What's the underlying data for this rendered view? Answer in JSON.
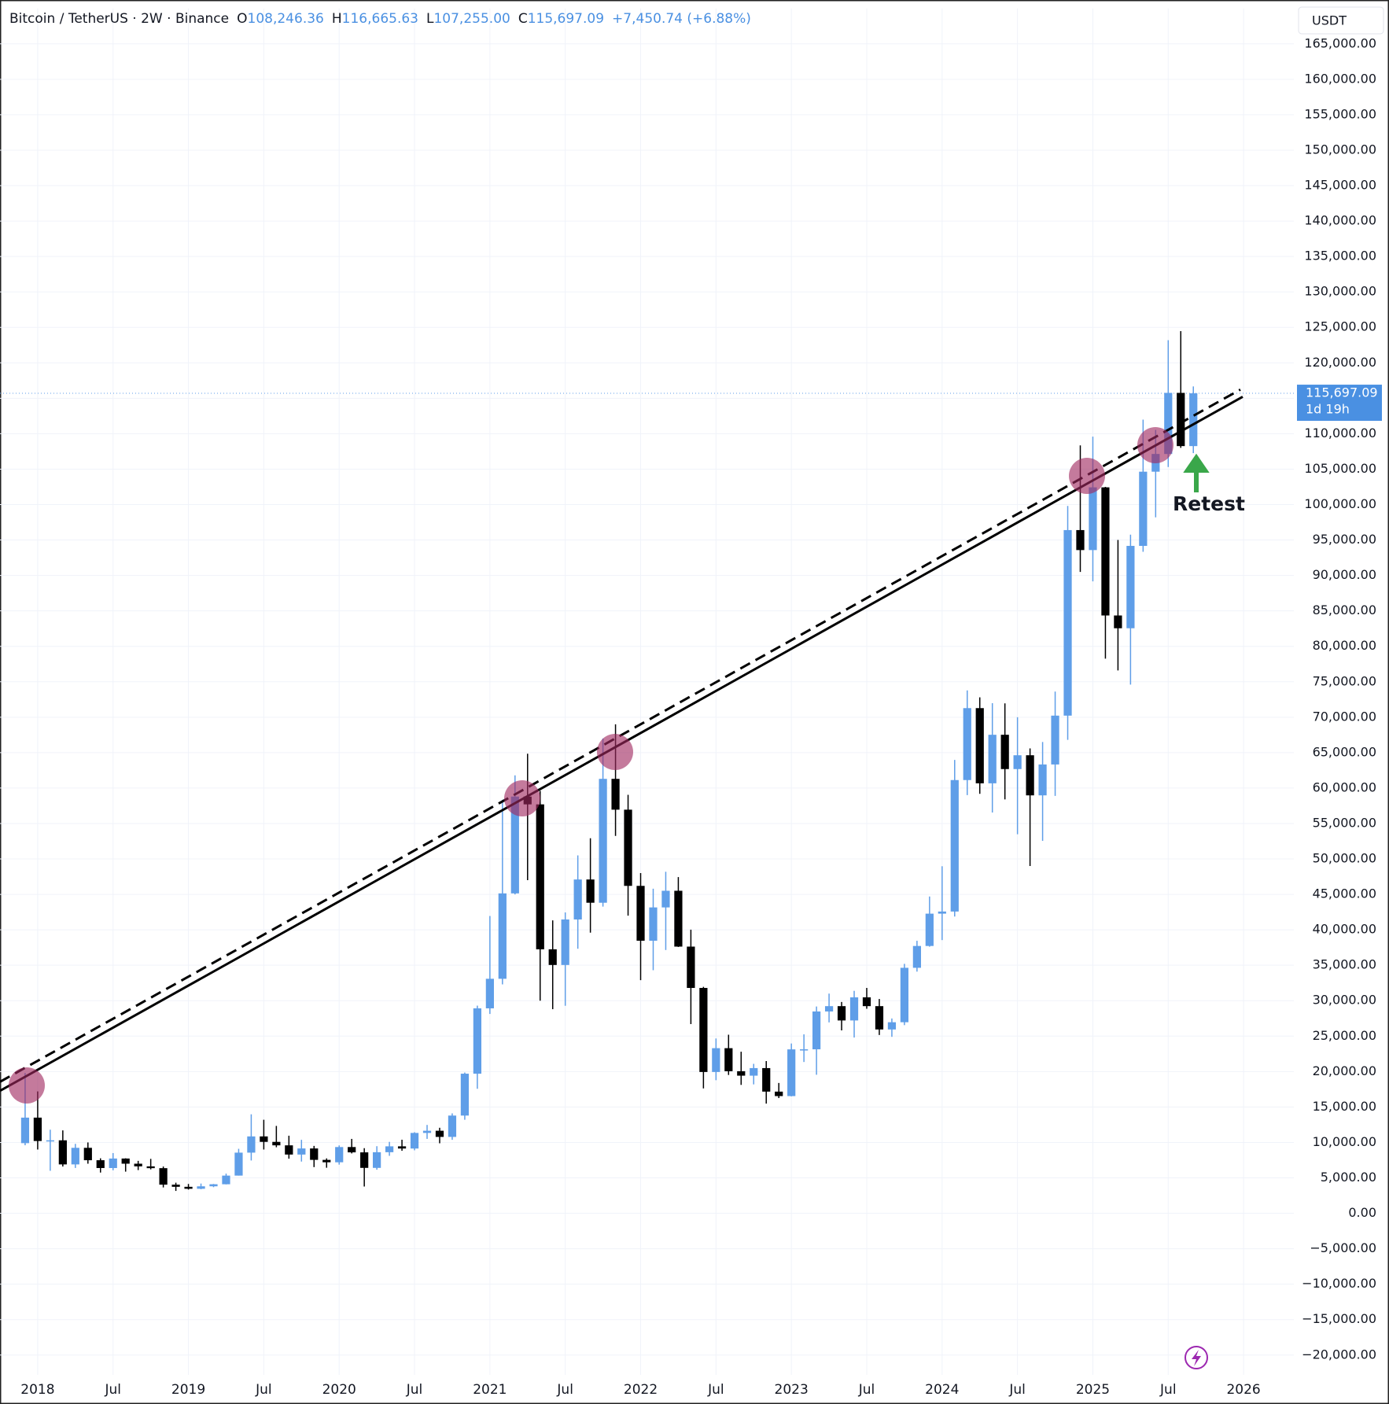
{
  "chart_data": {
    "type": "candlestick",
    "header": {
      "symbol": "Bitcoin / TetherUS · 2W · Binance",
      "fields": [
        {
          "key": "O",
          "text": "108,246.36"
        },
        {
          "key": "H",
          "text": "116,665.63"
        },
        {
          "key": "L",
          "text": "107,255.00"
        },
        {
          "key": "C",
          "text": "115,697.09"
        }
      ],
      "change": "+7,450.74 (+6.88%)"
    },
    "currency": "USDT",
    "up_color": "#5f9ee8",
    "down_color": "#000000",
    "x": [
      "2017-12",
      "2018-01",
      "2018-02",
      "2018-03",
      "2018-04",
      "2018-05",
      "2018-06",
      "2018-07",
      "2018-08",
      "2018-09",
      "2018-10",
      "2018-11",
      "2018-12",
      "2019-01",
      "2019-02",
      "2019-03",
      "2019-04",
      "2019-05",
      "2019-06",
      "2019-07",
      "2019-08",
      "2019-09",
      "2019-10",
      "2019-11",
      "2019-12",
      "2020-01",
      "2020-02",
      "2020-03",
      "2020-04",
      "2020-05",
      "2020-06",
      "2020-07",
      "2020-08",
      "2020-09",
      "2020-10",
      "2020-11",
      "2020-12",
      "2021-01",
      "2021-02",
      "2021-03",
      "2021-04",
      "2021-05",
      "2021-06",
      "2021-07",
      "2021-08",
      "2021-09",
      "2021-10",
      "2021-11",
      "2021-12",
      "2022-01",
      "2022-02",
      "2022-03",
      "2022-04",
      "2022-05",
      "2022-06",
      "2022-07",
      "2022-08",
      "2022-09",
      "2022-10",
      "2022-11",
      "2022-12",
      "2023-01",
      "2023-02",
      "2023-03",
      "2023-04",
      "2023-05",
      "2023-06",
      "2023-07",
      "2023-08",
      "2023-09",
      "2023-10",
      "2023-11",
      "2023-12",
      "2024-01",
      "2024-02",
      "2024-03",
      "2024-04",
      "2024-05",
      "2024-06",
      "2024-07",
      "2024-08",
      "2024-09",
      "2024-10",
      "2024-11",
      "2024-12",
      "2025-01",
      "2025-02",
      "2025-03",
      "2025-04",
      "2025-05",
      "2025-06",
      "2025-07",
      "2025-08",
      "2025-09"
    ],
    "ohlc": [
      [
        9900,
        19800,
        9600,
        13500
      ],
      [
        13500,
        17200,
        9000,
        10200
      ],
      [
        10200,
        11800,
        6000,
        10300
      ],
      [
        10300,
        11700,
        6600,
        6900
      ],
      [
        6900,
        9800,
        6400,
        9240
      ],
      [
        9240,
        10000,
        7000,
        7490
      ],
      [
        7490,
        7760,
        5750,
        6390
      ],
      [
        6390,
        8500,
        6070,
        7730
      ],
      [
        7730,
        7760,
        5880,
        7000
      ],
      [
        7000,
        7400,
        6100,
        6625
      ],
      [
        6625,
        7680,
        6200,
        6370
      ],
      [
        6370,
        6600,
        3650,
        4040
      ],
      [
        4040,
        4320,
        3160,
        3740
      ],
      [
        3740,
        4140,
        3350,
        3460
      ],
      [
        3460,
        4200,
        3400,
        3810
      ],
      [
        3810,
        4140,
        3690,
        4100
      ],
      [
        4100,
        5600,
        4080,
        5320
      ],
      [
        5320,
        9100,
        5320,
        8560
      ],
      [
        8560,
        13970,
        7450,
        10850
      ],
      [
        10850,
        13200,
        9000,
        10080
      ],
      [
        10080,
        12330,
        9320,
        9590
      ],
      [
        9590,
        10950,
        7710,
        8290
      ],
      [
        8290,
        10370,
        7300,
        9150
      ],
      [
        9150,
        9510,
        6520,
        7540
      ],
      [
        7540,
        7750,
        6430,
        7200
      ],
      [
        7200,
        9580,
        6870,
        9350
      ],
      [
        9350,
        10500,
        8450,
        8600
      ],
      [
        8600,
        9190,
        3780,
        6410
      ],
      [
        6410,
        9470,
        6150,
        8620
      ],
      [
        8620,
        10080,
        8110,
        9450
      ],
      [
        9450,
        10380,
        8830,
        9140
      ],
      [
        9140,
        11440,
        8890,
        11340
      ],
      [
        11340,
        12470,
        10500,
        11650
      ],
      [
        11650,
        12070,
        9880,
        10780
      ],
      [
        10780,
        14100,
        10370,
        13790
      ],
      [
        13790,
        19860,
        13200,
        19700
      ],
      [
        19700,
        29300,
        17570,
        28920
      ],
      [
        28920,
        41950,
        28130,
        33090
      ],
      [
        33090,
        58350,
        32300,
        45140
      ],
      [
        45140,
        61790,
        45000,
        58800
      ],
      [
        58800,
        64850,
        47000,
        57700
      ],
      [
        57700,
        59600,
        30000,
        37250
      ],
      [
        37250,
        41330,
        28800,
        35040
      ],
      [
        35040,
        42450,
        29280,
        41460
      ],
      [
        41460,
        50500,
        37330,
        47100
      ],
      [
        47100,
        52920,
        39600,
        43820
      ],
      [
        43820,
        67000,
        43280,
        61300
      ],
      [
        61300,
        69000,
        53250,
        56950
      ],
      [
        56950,
        59050,
        42000,
        46200
      ],
      [
        46200,
        48000,
        32900,
        38460
      ],
      [
        38460,
        45800,
        34300,
        43160
      ],
      [
        43160,
        48190,
        37150,
        45510
      ],
      [
        45510,
        47440,
        37580,
        37630
      ],
      [
        37630,
        40020,
        26700,
        31800
      ],
      [
        31800,
        31960,
        17620,
        19940
      ],
      [
        19940,
        24670,
        18780,
        23300
      ],
      [
        23300,
        25200,
        19520,
        20050
      ],
      [
        20050,
        22800,
        18120,
        19420
      ],
      [
        19420,
        21090,
        18190,
        20490
      ],
      [
        20490,
        21480,
        15480,
        17170
      ],
      [
        17170,
        18390,
        16260,
        16540
      ],
      [
        16540,
        23960,
        16500,
        23130
      ],
      [
        23130,
        25250,
        21350,
        23140
      ],
      [
        23140,
        29180,
        19550,
        28480
      ],
      [
        28480,
        31000,
        26940,
        29230
      ],
      [
        29230,
        29820,
        25810,
        27210
      ],
      [
        27210,
        31390,
        24800,
        30470
      ],
      [
        30470,
        31800,
        28860,
        29230
      ],
      [
        29230,
        30240,
        25160,
        25940
      ],
      [
        25940,
        27490,
        24900,
        26960
      ],
      [
        26960,
        35200,
        26550,
        34640
      ],
      [
        34640,
        38450,
        34100,
        37720
      ],
      [
        37720,
        44700,
        37620,
        42280
      ],
      [
        42280,
        48970,
        38550,
        42580
      ],
      [
        42580,
        63970,
        41880,
        61130
      ],
      [
        61130,
        73780,
        59000,
        71280
      ],
      [
        71280,
        72800,
        59190,
        60670
      ],
      [
        60670,
        71980,
        56550,
        67520
      ],
      [
        67520,
        71950,
        58400,
        62680
      ],
      [
        62680,
        70000,
        53480,
        64630
      ],
      [
        64630,
        65600,
        49000,
        58970
      ],
      [
        58970,
        66500,
        52550,
        63330
      ],
      [
        63330,
        73620,
        58900,
        70220
      ],
      [
        70220,
        99800,
        66800,
        96400
      ],
      [
        96400,
        108350,
        90500,
        93580
      ],
      [
        93580,
        109590,
        89160,
        102430
      ],
      [
        102430,
        102500,
        78260,
        84350
      ],
      [
        84350,
        95000,
        76600,
        82550
      ],
      [
        82550,
        95760,
        74600,
        94170
      ],
      [
        94170,
        111980,
        93340,
        104640
      ],
      [
        104640,
        110530,
        98200,
        107140
      ],
      [
        107140,
        123200,
        105300,
        115760
      ],
      [
        115760,
        124470,
        108000,
        108250
      ],
      [
        108250,
        116670,
        107260,
        115697.09
      ]
    ],
    "xlim": [
      "2017-10",
      "2026-05"
    ],
    "xticks": [
      {
        "value": "2018-01",
        "label": "2018"
      },
      {
        "value": "2018-07",
        "label": "Jul"
      },
      {
        "value": "2019-01",
        "label": "2019"
      },
      {
        "value": "2019-07",
        "label": "Jul"
      },
      {
        "value": "2020-01",
        "label": "2020"
      },
      {
        "value": "2020-07",
        "label": "Jul"
      },
      {
        "value": "2021-01",
        "label": "2021"
      },
      {
        "value": "2021-07",
        "label": "Jul"
      },
      {
        "value": "2022-01",
        "label": "2022"
      },
      {
        "value": "2022-07",
        "label": "Jul"
      },
      {
        "value": "2023-01",
        "label": "2023"
      },
      {
        "value": "2023-07",
        "label": "Jul"
      },
      {
        "value": "2024-01",
        "label": "2024"
      },
      {
        "value": "2024-07",
        "label": "Jul"
      },
      {
        "value": "2025-01",
        "label": "2025"
      },
      {
        "value": "2025-07",
        "label": "Jul"
      },
      {
        "value": "2026-01",
        "label": "2026"
      }
    ],
    "ylim": [
      -22800,
      170000
    ],
    "yticks": [
      {
        "value": 165000,
        "label": "165,000.00"
      },
      {
        "value": 160000,
        "label": "160,000.00"
      },
      {
        "value": 155000,
        "label": "155,000.00"
      },
      {
        "value": 150000,
        "label": "150,000.00"
      },
      {
        "value": 145000,
        "label": "145,000.00"
      },
      {
        "value": 140000,
        "label": "140,000.00"
      },
      {
        "value": 135000,
        "label": "135,000.00"
      },
      {
        "value": 130000,
        "label": "130,000.00"
      },
      {
        "value": 125000,
        "label": "125,000.00"
      },
      {
        "value": 120000,
        "label": "120,000.00"
      },
      {
        "value": 115000,
        "label": "115,000.00"
      },
      {
        "value": 110000,
        "label": "110,000.00"
      },
      {
        "value": 105000,
        "label": "105,000.00"
      },
      {
        "value": 100000,
        "label": "100,000.00"
      },
      {
        "value": 95000,
        "label": "95,000.00"
      },
      {
        "value": 90000,
        "label": "90,000.00"
      },
      {
        "value": 85000,
        "label": "85,000.00"
      },
      {
        "value": 80000,
        "label": "80,000.00"
      },
      {
        "value": 75000,
        "label": "75,000.00"
      },
      {
        "value": 70000,
        "label": "70,000.00"
      },
      {
        "value": 65000,
        "label": "65,000.00"
      },
      {
        "value": 60000,
        "label": "60,000.00"
      },
      {
        "value": 55000,
        "label": "55,000.00"
      },
      {
        "value": 50000,
        "label": "50,000.00"
      },
      {
        "value": 45000,
        "label": "45,000.00"
      },
      {
        "value": 40000,
        "label": "40,000.00"
      },
      {
        "value": 35000,
        "label": "35,000.00"
      },
      {
        "value": 30000,
        "label": "30,000.00"
      },
      {
        "value": 25000,
        "label": "25,000.00"
      },
      {
        "value": 20000,
        "label": "20,000.00"
      },
      {
        "value": 15000,
        "label": "15,000.00"
      },
      {
        "value": 10000,
        "label": "10,000.00"
      },
      {
        "value": 5000,
        "label": "5,000.00"
      },
      {
        "value": 0,
        "label": "0.00"
      },
      {
        "value": -5000,
        "label": "−5,000.00"
      },
      {
        "value": -10000,
        "label": "−10,000.00"
      },
      {
        "value": -15000,
        "label": "−15,000.00"
      },
      {
        "value": -20000,
        "label": "−20,000.00"
      }
    ],
    "grid": true,
    "last_price": {
      "value": 115697.09,
      "label": "115,697.09",
      "countdown": "1d 19h"
    },
    "annotation": "Retest"
  }
}
